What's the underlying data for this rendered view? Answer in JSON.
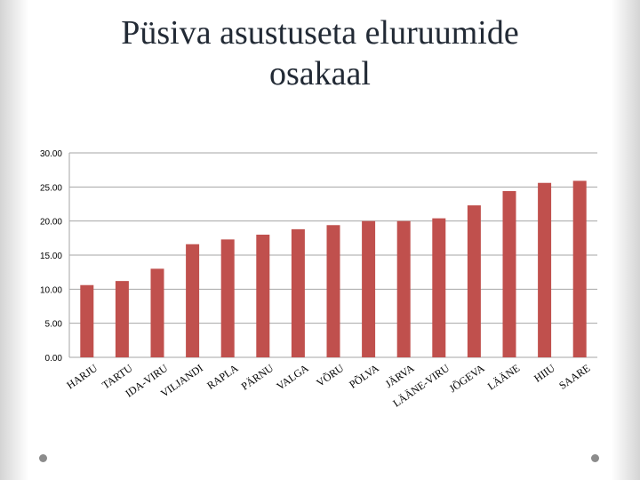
{
  "title_lines": [
    "Püsiva asustuseta eluruumide",
    "osakaal"
  ],
  "colors": {
    "bar": "#c0504d",
    "grid": "#a6a6a6",
    "title": "#222a35"
  },
  "chart_data": {
    "type": "bar",
    "title": "Püsiva asustuseta eluruumide osakaal",
    "categories": [
      "HARJU",
      "TARTU",
      "IDA-VIRU",
      "VILJANDI",
      "RAPLA",
      "PÄRNU",
      "VALGA",
      "VÕRU",
      "PÕLVA",
      "JÄRVA",
      "LÄÄNE-VIRU",
      "JÕGEVA",
      "LÄÄNE",
      "HIIU",
      "SAARE"
    ],
    "values": [
      10.6,
      11.2,
      13.0,
      16.6,
      17.3,
      18.0,
      18.8,
      19.4,
      20.0,
      20.0,
      20.4,
      22.3,
      24.4,
      25.6,
      25.9
    ],
    "ylim": [
      0,
      30
    ],
    "yticks": [
      "0.00",
      "5.00",
      "10.00",
      "15.00",
      "20.00",
      "25.00",
      "30.00"
    ],
    "grid": true,
    "legend": "none"
  }
}
